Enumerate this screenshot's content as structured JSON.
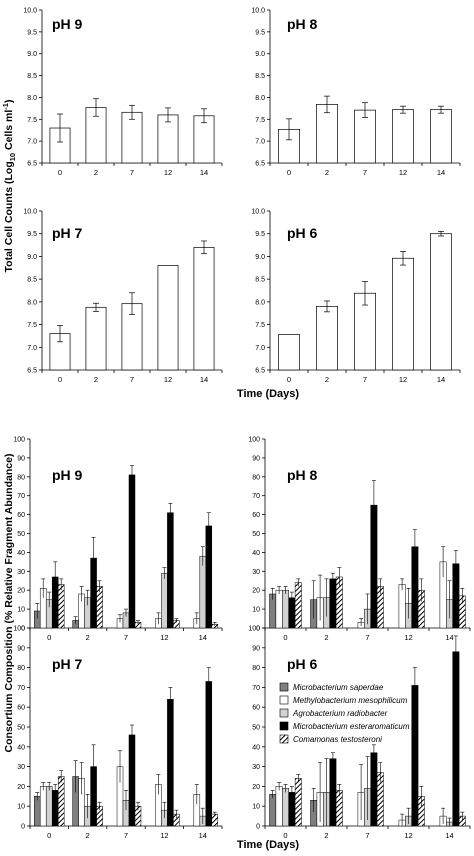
{
  "chart_data": [
    {
      "type": "bar",
      "panel": "pH 9",
      "categories": [
        "0",
        "2",
        "7",
        "12",
        "14"
      ],
      "values": [
        7.3,
        7.77,
        7.66,
        7.6,
        7.58
      ],
      "errors": [
        0.32,
        0.2,
        0.16,
        0.16,
        0.16
      ],
      "ylim": [
        6.5,
        10.0
      ],
      "yticks": [
        "6.5",
        "7.0",
        "7.5",
        "8.0",
        "8.5",
        "9.0",
        "9.5",
        "10.0"
      ]
    },
    {
      "type": "bar",
      "panel": "pH 8",
      "categories": [
        "0",
        "2",
        "7",
        "12",
        "14"
      ],
      "values": [
        7.27,
        7.84,
        7.71,
        7.72,
        7.72
      ],
      "errors": [
        0.24,
        0.19,
        0.17,
        0.08,
        0.08
      ],
      "ylim": [
        6.5,
        10.0
      ],
      "yticks": [
        "6.5",
        "7.0",
        "7.5",
        "8.0",
        "8.5",
        "9.0",
        "9.5",
        "10.0"
      ]
    },
    {
      "type": "bar",
      "panel": "pH 7",
      "categories": [
        "0",
        "2",
        "7",
        "12",
        "14"
      ],
      "values": [
        7.3,
        7.88,
        7.96,
        8.8,
        9.2
      ],
      "errors": [
        0.18,
        0.09,
        0.24,
        0.0,
        0.14
      ],
      "ylim": [
        6.5,
        10.0
      ],
      "yticks": [
        "6.5",
        "7.0",
        "7.5",
        "8.0",
        "8.5",
        "9.0",
        "9.5",
        "10.0"
      ]
    },
    {
      "type": "bar",
      "panel": "pH 6",
      "categories": [
        "0",
        "2",
        "7",
        "12",
        "14"
      ],
      "values": [
        7.28,
        7.9,
        8.19,
        8.96,
        9.5
      ],
      "errors": [
        0.0,
        0.12,
        0.26,
        0.15,
        0.05
      ],
      "ylim": [
        6.5,
        10.0
      ],
      "yticks": [
        "6.5",
        "7.0",
        "7.5",
        "8.0",
        "8.5",
        "9.0",
        "9.5",
        "10.0"
      ]
    },
    {
      "type": "bar",
      "panel": "pH 9",
      "categories": [
        "0",
        "2",
        "7",
        "12",
        "14"
      ],
      "ylim": [
        0,
        100
      ],
      "yticks": [
        "0",
        "10",
        "20",
        "30",
        "40",
        "50",
        "60",
        "70",
        "80",
        "90",
        "100"
      ],
      "series": [
        {
          "name": "Microbacterium saperdae",
          "values": [
            9,
            4,
            0,
            0,
            0
          ],
          "errors": [
            4,
            2,
            0,
            0,
            0
          ]
        },
        {
          "name": "Methylobacterium mesophilicum",
          "values": [
            21,
            18,
            5,
            5,
            5
          ],
          "errors": [
            5,
            4,
            2,
            3,
            3
          ]
        },
        {
          "name": "Agrobacterium radiobacter",
          "values": [
            15,
            16,
            8,
            29,
            38
          ],
          "errors": [
            4,
            4,
            2,
            3,
            5
          ]
        },
        {
          "name": "Microbacterium esteraromaticum",
          "values": [
            27,
            37,
            81,
            61,
            54
          ],
          "errors": [
            8,
            11,
            5,
            5,
            7
          ]
        },
        {
          "name": "Comamonas testosteroni",
          "values": [
            23,
            22,
            3,
            4,
            2
          ],
          "errors": [
            3,
            3,
            1,
            1,
            1
          ]
        }
      ]
    },
    {
      "type": "bar",
      "panel": "pH 8",
      "categories": [
        "0",
        "2",
        "7",
        "12",
        "14"
      ],
      "ylim": [
        0,
        100
      ],
      "yticks": [
        "0",
        "10",
        "20",
        "30",
        "40",
        "50",
        "60",
        "70",
        "80",
        "90",
        "100"
      ],
      "series": [
        {
          "name": "Microbacterium saperdae",
          "values": [
            18,
            15,
            0,
            0,
            0
          ],
          "errors": [
            3,
            10,
            0,
            0,
            0
          ]
        },
        {
          "name": "Methylobacterium mesophilicum",
          "values": [
            20,
            16,
            3,
            23,
            35
          ],
          "errors": [
            2,
            12,
            2,
            3,
            8
          ]
        },
        {
          "name": "Agrobacterium radiobacter",
          "values": [
            20,
            16,
            10,
            13,
            15
          ],
          "errors": [
            2,
            10,
            8,
            8,
            10
          ]
        },
        {
          "name": "Microbacterium esteraromaticum",
          "values": [
            16,
            26,
            65,
            43,
            34
          ],
          "errors": [
            3,
            3,
            13,
            9,
            7
          ]
        },
        {
          "name": "Comamonas testosteroni",
          "values": [
            24,
            27,
            22,
            20,
            17
          ],
          "errors": [
            2,
            5,
            4,
            6,
            4
          ]
        }
      ]
    },
    {
      "type": "bar",
      "panel": "pH 7",
      "categories": [
        "0",
        "2",
        "7",
        "12",
        "14"
      ],
      "ylim": [
        0,
        100
      ],
      "yticks": [
        "0",
        "10",
        "20",
        "30",
        "40",
        "50",
        "60",
        "70",
        "80",
        "90",
        "100"
      ],
      "series": [
        {
          "name": "Microbacterium saperdae",
          "values": [
            15,
            25,
            0,
            0,
            0
          ],
          "errors": [
            2,
            8,
            0,
            0,
            0
          ]
        },
        {
          "name": "Methylobacterium mesophilicum",
          "values": [
            20,
            24,
            30,
            21,
            16
          ],
          "errors": [
            2,
            8,
            8,
            5,
            5
          ]
        },
        {
          "name": "Agrobacterium radiobacter",
          "values": [
            20,
            10,
            13,
            8,
            5
          ],
          "errors": [
            2,
            6,
            5,
            4,
            4
          ]
        },
        {
          "name": "Microbacterium esteraromaticum",
          "values": [
            18,
            30,
            46,
            64,
            73
          ],
          "errors": [
            3,
            11,
            5,
            6,
            7
          ]
        },
        {
          "name": "Comamonas testosteroni",
          "values": [
            25,
            10,
            10,
            6,
            6
          ],
          "errors": [
            3,
            2,
            2,
            2,
            1
          ]
        }
      ]
    },
    {
      "type": "bar",
      "panel": "pH 6",
      "categories": [
        "0",
        "2",
        "7",
        "12",
        "14"
      ],
      "ylim": [
        0,
        100
      ],
      "yticks": [
        "0",
        "10",
        "20",
        "30",
        "40",
        "50",
        "60",
        "70",
        "80",
        "90",
        "100"
      ],
      "series": [
        {
          "name": "Microbacterium saperdae",
          "values": [
            16,
            13,
            0,
            0,
            0
          ],
          "errors": [
            2,
            6,
            0,
            0,
            0
          ]
        },
        {
          "name": "Methylobacterium mesophilicum",
          "values": [
            20,
            17,
            17,
            3,
            5
          ],
          "errors": [
            2,
            15,
            14,
            3,
            4
          ]
        },
        {
          "name": "Agrobacterium radiobacter",
          "values": [
            19,
            17,
            19,
            5,
            2
          ],
          "errors": [
            2,
            17,
            16,
            4,
            2
          ]
        },
        {
          "name": "Microbacterium esteraromaticum",
          "values": [
            17,
            34,
            37,
            71,
            88
          ],
          "errors": [
            3,
            3,
            4,
            9,
            8
          ]
        },
        {
          "name": "Comamonas testosteroni",
          "values": [
            24,
            18,
            27,
            15,
            5
          ],
          "errors": [
            2,
            3,
            5,
            5,
            2
          ]
        }
      ]
    }
  ],
  "figure": {
    "top_ylabel_a": "Total Cell Counts (Log",
    "top_ylabel_sub": "10",
    "top_ylabel_b": " Cells ml",
    "top_ylabel_sup": "-1",
    "top_ylabel_c": ")",
    "bottom_ylabel": "Consortium Composition (% Relative Fragment Abundance)",
    "xlabel": "Time (Days)",
    "legend_position": "bottom-right panel, upper-left",
    "series_fills": [
      "#7f7f7f",
      "#ffffff",
      "#d2d2d2",
      "#000000",
      "hatched"
    ]
  }
}
